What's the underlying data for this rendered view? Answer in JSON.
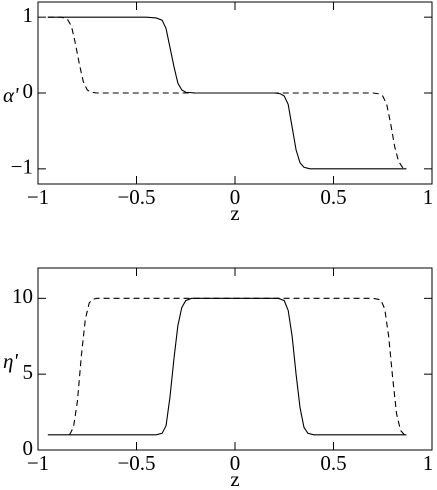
{
  "chart_data": [
    {
      "type": "line",
      "xlabel": "z",
      "ylabel": "α'",
      "xlim": [
        -1,
        1
      ],
      "ylim": [
        -1.2,
        1.2
      ],
      "xticks": [
        {
          "value": -1,
          "label": "−1"
        },
        {
          "value": -0.5,
          "label": "−0.5"
        },
        0,
        0.5,
        1
      ],
      "yticks": [
        {
          "value": -1,
          "label": "−1"
        },
        0,
        1
      ],
      "series": [
        {
          "color": "#000000",
          "linestyle": "solid",
          "x": [
            -0.95,
            -0.45,
            -0.4,
            -0.37,
            -0.35,
            -0.33,
            -0.31,
            -0.29,
            -0.27,
            -0.25,
            -0.2,
            0.2,
            0.23,
            0.25,
            0.27,
            0.29,
            0.31,
            0.33,
            0.35,
            0.38,
            0.87
          ],
          "values": [
            1,
            1,
            0.99,
            0.96,
            0.85,
            0.6,
            0.35,
            0.13,
            0.04,
            0.01,
            0,
            0,
            -0.01,
            -0.04,
            -0.15,
            -0.45,
            -0.75,
            -0.92,
            -0.98,
            -1,
            -1
          ]
        },
        {
          "color": "#000000",
          "linestyle": "dashed",
          "x": [
            -0.95,
            -0.88,
            -0.85,
            -0.83,
            -0.81,
            -0.79,
            -0.77,
            -0.75,
            -0.73,
            -0.7,
            0.7,
            0.73,
            0.75,
            0.77,
            0.79,
            0.81,
            0.83,
            0.85,
            0.87
          ],
          "values": [
            1,
            1,
            0.97,
            0.88,
            0.65,
            0.38,
            0.15,
            0.04,
            0.01,
            0,
            0,
            -0.01,
            -0.04,
            -0.15,
            -0.4,
            -0.7,
            -0.9,
            -0.98,
            -1
          ]
        }
      ]
    },
    {
      "type": "line",
      "xlabel": "z",
      "ylabel": "η'",
      "xlim": [
        -1,
        1
      ],
      "ylim": [
        0,
        12
      ],
      "xticks": [
        {
          "value": -1,
          "label": "−1"
        },
        {
          "value": -0.5,
          "label": "−0.5"
        },
        0,
        0.5,
        1
      ],
      "yticks": [
        0,
        5,
        10
      ],
      "series": [
        {
          "color": "#000000",
          "linestyle": "solid",
          "x": [
            -0.95,
            -0.4,
            -0.37,
            -0.35,
            -0.33,
            -0.31,
            -0.29,
            -0.27,
            -0.25,
            -0.22,
            0.22,
            0.25,
            0.27,
            0.29,
            0.31,
            0.33,
            0.35,
            0.37,
            0.4,
            0.87
          ],
          "values": [
            1,
            1,
            1.1,
            1.6,
            3.5,
            6,
            8.2,
            9.4,
            9.85,
            10,
            10,
            9.85,
            9.2,
            7.5,
            5,
            2.8,
            1.5,
            1.1,
            1,
            1
          ]
        },
        {
          "color": "#000000",
          "linestyle": "dashed",
          "x": [
            -0.84,
            -0.82,
            -0.8,
            -0.78,
            -0.76,
            -0.74,
            -0.72,
            -0.7,
            0.7,
            0.74,
            0.76,
            0.78,
            0.8,
            0.82,
            0.84,
            0.86
          ],
          "values": [
            1,
            1.5,
            3.2,
            6.2,
            8.6,
            9.7,
            9.95,
            10,
            10,
            9.9,
            9.3,
            7.5,
            4.8,
            2.4,
            1.3,
            1
          ]
        }
      ]
    }
  ]
}
